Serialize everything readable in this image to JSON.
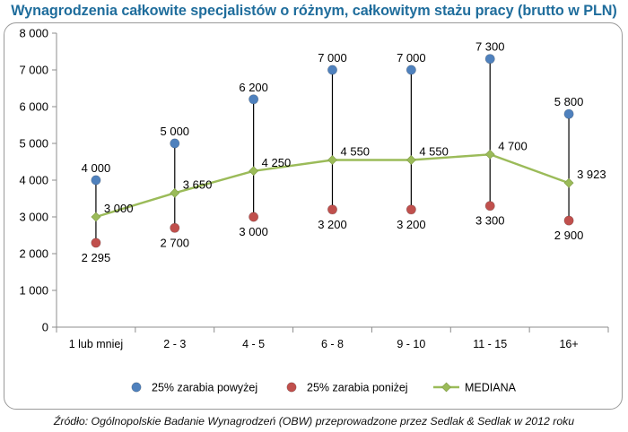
{
  "title": "Wynagrodzenia całkowite specjalistów o różnym, całkowitym stażu pracy (brutto w PLN)",
  "source": "Źródło: Ogólnopolskie Badanie Wynagrodzeń (OBW) przeprowadzone przez Sedlak & Sedlak w 2012 roku",
  "colors": {
    "title": "#1f6d9c",
    "upper": "#4f81bd",
    "lower": "#c0504d",
    "median": "#9bbb59",
    "range_line": "#000000"
  },
  "chart_data": {
    "type": "line",
    "categories": [
      "1 lub mniej",
      "2 - 3",
      "4 - 5",
      "6 - 8",
      "9 - 10",
      "11 - 15",
      "16+"
    ],
    "ylim": [
      0,
      8000
    ],
    "yticks": [
      0,
      1000,
      2000,
      3000,
      4000,
      5000,
      6000,
      7000,
      8000
    ],
    "ytick_labels": [
      "0",
      "1 000",
      "2 000",
      "3 000",
      "4 000",
      "5 000",
      "6 000",
      "7 000",
      "8 000"
    ],
    "grid": false,
    "legend_position": "bottom",
    "series": [
      {
        "name": "25% zarabia powyżej",
        "kind": "scatter",
        "values": [
          4000,
          5000,
          6200,
          7000,
          7000,
          7300,
          5800
        ],
        "labels": [
          "4 000",
          "5 000",
          "6 200",
          "7 000",
          "7 000",
          "7 300",
          "5 800"
        ]
      },
      {
        "name": "25% zarabia poniżej",
        "kind": "scatter",
        "values": [
          2295,
          2700,
          3000,
          3200,
          3200,
          3300,
          2900
        ],
        "labels": [
          "2 295",
          "2 700",
          "3 000",
          "3 200",
          "3 200",
          "3 300",
          "2 900"
        ]
      },
      {
        "name": "MEDIANA",
        "kind": "line",
        "values": [
          3000,
          3650,
          4250,
          4550,
          4550,
          4700,
          3923
        ],
        "labels": [
          "3 000",
          "3 650",
          "4 250",
          "4 550",
          "4 550",
          "4 700",
          "3 923"
        ]
      }
    ]
  }
}
